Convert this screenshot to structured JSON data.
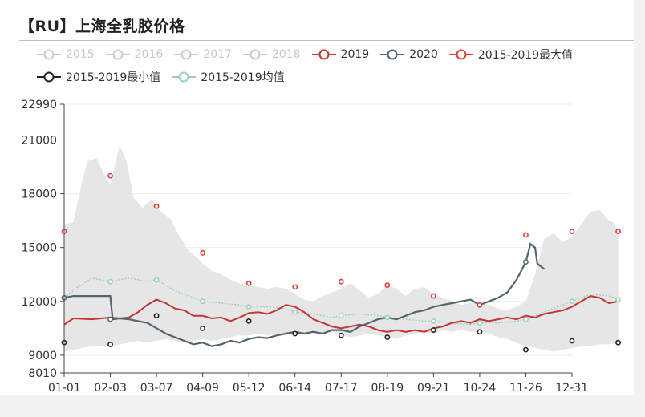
{
  "page": {
    "title": "【RU】上海全乳胶价格"
  },
  "colors": {
    "c2015": "#cccccc",
    "c2016": "#cccccc",
    "c2017": "#cccccc",
    "c2018": "#cccccc",
    "c2019": "#c23531",
    "c2020": "#546570",
    "cmax": "#d9413c",
    "cmin": "#222222",
    "cavg": "#9fd0b6",
    "band": "#e6e6e6",
    "grid": "#eeeeee",
    "axis": "#444444"
  },
  "chart_data": {
    "type": "line",
    "categories": [
      "01-01",
      "02-03",
      "03-07",
      "04-09",
      "05-12",
      "06-14",
      "07-17",
      "08-19",
      "09-21",
      "10-24",
      "11-26",
      "12-31"
    ],
    "y_ticks": [
      8010,
      9000,
      12000,
      15000,
      18000,
      21000,
      22990
    ],
    "ylim": [
      8010,
      22990
    ],
    "grid": true,
    "legend_position": "top",
    "legend": [
      {
        "name": "2015",
        "active": false
      },
      {
        "name": "2016",
        "active": false
      },
      {
        "name": "2017",
        "active": false
      },
      {
        "name": "2018",
        "active": false
      },
      {
        "name": "2019",
        "active": true
      },
      {
        "name": "2020",
        "active": true
      },
      {
        "name": "2015-2019最大值",
        "active": true
      },
      {
        "name": "2015-2019最小值",
        "active": true
      },
      {
        "name": "2015-2019均值",
        "active": true
      }
    ],
    "band": {
      "upper": [
        [
          0,
          16300
        ],
        [
          0.2,
          16400
        ],
        [
          0.4,
          18800
        ],
        [
          0.5,
          19800
        ],
        [
          0.7,
          20000
        ],
        [
          0.9,
          18900
        ],
        [
          1.0,
          18500
        ],
        [
          1.2,
          20700
        ],
        [
          1.35,
          19800
        ],
        [
          1.5,
          17800
        ],
        [
          1.7,
          17200
        ],
        [
          1.9,
          17700
        ],
        [
          2.1,
          17000
        ],
        [
          2.3,
          16600
        ],
        [
          2.5,
          15600
        ],
        [
          2.7,
          14800
        ],
        [
          2.9,
          14400
        ],
        [
          3.0,
          14100
        ],
        [
          3.2,
          13700
        ],
        [
          3.4,
          13500
        ],
        [
          3.6,
          13200
        ],
        [
          3.8,
          13000
        ],
        [
          4.0,
          12900
        ],
        [
          4.2,
          12800
        ],
        [
          4.4,
          12700
        ],
        [
          4.6,
          12800
        ],
        [
          4.8,
          12700
        ],
        [
          5.0,
          12400
        ],
        [
          5.2,
          12100
        ],
        [
          5.4,
          12000
        ],
        [
          5.6,
          12300
        ],
        [
          5.8,
          12500
        ],
        [
          6.0,
          12700
        ],
        [
          6.2,
          13000
        ],
        [
          6.4,
          12600
        ],
        [
          6.6,
          12200
        ],
        [
          6.8,
          12400
        ],
        [
          7.0,
          12900
        ],
        [
          7.2,
          12700
        ],
        [
          7.4,
          12300
        ],
        [
          7.6,
          12700
        ],
        [
          7.8,
          12800
        ],
        [
          8.0,
          12400
        ],
        [
          8.2,
          12200
        ],
        [
          8.4,
          12000
        ],
        [
          8.6,
          11800
        ],
        [
          8.8,
          11900
        ],
        [
          9.0,
          11900
        ],
        [
          9.2,
          11800
        ],
        [
          9.4,
          11600
        ],
        [
          9.6,
          11500
        ],
        [
          9.8,
          11700
        ],
        [
          10.0,
          12000
        ],
        [
          10.2,
          13500
        ],
        [
          10.4,
          15500
        ],
        [
          10.6,
          15800
        ],
        [
          10.8,
          15300
        ],
        [
          11.0,
          15600
        ],
        [
          11.2,
          16300
        ],
        [
          11.4,
          17000
        ],
        [
          11.6,
          17100
        ],
        [
          11.8,
          16500
        ],
        [
          11.9,
          16400
        ],
        [
          12.0,
          15900
        ]
      ],
      "lower": [
        [
          0,
          9200
        ],
        [
          0.2,
          9300
        ],
        [
          0.4,
          9400
        ],
        [
          0.6,
          9500
        ],
        [
          0.8,
          9500
        ],
        [
          1.0,
          9500
        ],
        [
          1.2,
          9600
        ],
        [
          1.4,
          9700
        ],
        [
          1.6,
          9800
        ],
        [
          1.8,
          9700
        ],
        [
          2.0,
          9800
        ],
        [
          2.2,
          9900
        ],
        [
          2.4,
          9800
        ],
        [
          2.6,
          9700
        ],
        [
          2.8,
          9800
        ],
        [
          3.0,
          9900
        ],
        [
          3.2,
          9800
        ],
        [
          3.4,
          9900
        ],
        [
          3.6,
          10000
        ],
        [
          3.8,
          10100
        ],
        [
          4.0,
          10100
        ],
        [
          4.2,
          10200
        ],
        [
          4.4,
          10100
        ],
        [
          4.6,
          10200
        ],
        [
          4.8,
          10200
        ],
        [
          5.0,
          10100
        ],
        [
          5.2,
          10200
        ],
        [
          5.4,
          10300
        ],
        [
          5.6,
          10200
        ],
        [
          5.8,
          10300
        ],
        [
          6.0,
          10100
        ],
        [
          6.2,
          10000
        ],
        [
          6.4,
          10100
        ],
        [
          6.6,
          10200
        ],
        [
          6.8,
          10100
        ],
        [
          7.0,
          10000
        ],
        [
          7.2,
          9900
        ],
        [
          7.4,
          10100
        ],
        [
          7.6,
          10200
        ],
        [
          7.8,
          10300
        ],
        [
          8.0,
          10200
        ],
        [
          8.2,
          10400
        ],
        [
          8.4,
          10300
        ],
        [
          8.6,
          10400
        ],
        [
          8.8,
          10300
        ],
        [
          9.0,
          10300
        ],
        [
          9.2,
          10200
        ],
        [
          9.4,
          10000
        ],
        [
          9.6,
          9900
        ],
        [
          9.8,
          9700
        ],
        [
          10.0,
          9500
        ],
        [
          10.2,
          9400
        ],
        [
          10.4,
          9300
        ],
        [
          10.6,
          9200
        ],
        [
          10.8,
          9300
        ],
        [
          11.0,
          9400
        ],
        [
          11.2,
          9500
        ],
        [
          11.4,
          9500
        ],
        [
          11.6,
          9600
        ],
        [
          11.8,
          9600
        ],
        [
          12.0,
          9700
        ]
      ]
    },
    "series": [
      {
        "name": "2019",
        "values": [
          [
            0,
            10700
          ],
          [
            0.2,
            11050
          ],
          [
            0.6,
            11000
          ],
          [
            1.0,
            11100
          ],
          [
            1.2,
            11050
          ],
          [
            1.4,
            11100
          ],
          [
            1.6,
            11400
          ],
          [
            1.8,
            11800
          ],
          [
            2.0,
            12100
          ],
          [
            2.2,
            11900
          ],
          [
            2.4,
            11600
          ],
          [
            2.6,
            11500
          ],
          [
            2.8,
            11200
          ],
          [
            3.0,
            11200
          ],
          [
            3.2,
            11050
          ],
          [
            3.4,
            11100
          ],
          [
            3.6,
            10900
          ],
          [
            3.8,
            11100
          ],
          [
            4.0,
            11350
          ],
          [
            4.2,
            11400
          ],
          [
            4.4,
            11300
          ],
          [
            4.6,
            11500
          ],
          [
            4.8,
            11800
          ],
          [
            5.0,
            11700
          ],
          [
            5.2,
            11400
          ],
          [
            5.4,
            11000
          ],
          [
            5.6,
            10800
          ],
          [
            5.8,
            10600
          ],
          [
            6.0,
            10500
          ],
          [
            6.2,
            10600
          ],
          [
            6.4,
            10700
          ],
          [
            6.6,
            10600
          ],
          [
            6.8,
            10400
          ],
          [
            7.0,
            10300
          ],
          [
            7.2,
            10400
          ],
          [
            7.4,
            10300
          ],
          [
            7.6,
            10400
          ],
          [
            7.8,
            10300
          ],
          [
            8.0,
            10500
          ],
          [
            8.2,
            10600
          ],
          [
            8.4,
            10800
          ],
          [
            8.6,
            10900
          ],
          [
            8.8,
            10800
          ],
          [
            9.0,
            11000
          ],
          [
            9.2,
            10900
          ],
          [
            9.4,
            11000
          ],
          [
            9.6,
            11100
          ],
          [
            9.8,
            11000
          ],
          [
            10.0,
            11200
          ],
          [
            10.2,
            11100
          ],
          [
            10.4,
            11300
          ],
          [
            10.6,
            11400
          ],
          [
            10.8,
            11500
          ],
          [
            11.0,
            11700
          ],
          [
            11.2,
            12000
          ],
          [
            11.4,
            12300
          ],
          [
            11.6,
            12200
          ],
          [
            11.8,
            11900
          ],
          [
            12.0,
            12000
          ]
        ]
      },
      {
        "name": "2020",
        "values": [
          [
            0,
            12200
          ],
          [
            0.2,
            12300
          ],
          [
            0.4,
            12300
          ],
          [
            0.6,
            12300
          ],
          [
            0.8,
            12300
          ],
          [
            1.0,
            12300
          ],
          [
            1.05,
            11000
          ],
          [
            1.2,
            11050
          ],
          [
            1.4,
            11000
          ],
          [
            1.6,
            10900
          ],
          [
            1.8,
            10800
          ],
          [
            2.0,
            10500
          ],
          [
            2.2,
            10200
          ],
          [
            2.4,
            10000
          ],
          [
            2.6,
            9800
          ],
          [
            2.8,
            9600
          ],
          [
            3.0,
            9700
          ],
          [
            3.2,
            9500
          ],
          [
            3.4,
            9600
          ],
          [
            3.6,
            9800
          ],
          [
            3.8,
            9700
          ],
          [
            4.0,
            9900
          ],
          [
            4.2,
            10000
          ],
          [
            4.4,
            9950
          ],
          [
            4.6,
            10100
          ],
          [
            4.8,
            10200
          ],
          [
            5.0,
            10300
          ],
          [
            5.2,
            10200
          ],
          [
            5.4,
            10300
          ],
          [
            5.6,
            10200
          ],
          [
            5.8,
            10400
          ],
          [
            6.0,
            10400
          ],
          [
            6.2,
            10300
          ],
          [
            6.4,
            10600
          ],
          [
            6.6,
            10800
          ],
          [
            6.8,
            11000
          ],
          [
            7.0,
            11100
          ],
          [
            7.2,
            11000
          ],
          [
            7.4,
            11200
          ],
          [
            7.6,
            11400
          ],
          [
            7.8,
            11500
          ],
          [
            8.0,
            11700
          ],
          [
            8.2,
            11800
          ],
          [
            8.4,
            11900
          ],
          [
            8.6,
            12000
          ],
          [
            8.8,
            12100
          ],
          [
            9.0,
            11800
          ],
          [
            9.2,
            12000
          ],
          [
            9.4,
            12200
          ],
          [
            9.6,
            12500
          ],
          [
            9.8,
            13200
          ],
          [
            10.0,
            14200
          ],
          [
            10.1,
            15200
          ],
          [
            10.2,
            15000
          ],
          [
            10.25,
            14100
          ],
          [
            10.4,
            13800
          ]
        ]
      },
      {
        "name": "2015-2019最大值",
        "points": [
          [
            0,
            15900
          ],
          [
            1.0,
            19000
          ],
          [
            2.0,
            17300
          ],
          [
            3.0,
            14700
          ],
          [
            4.0,
            13000
          ],
          [
            5.0,
            12800
          ],
          [
            6.0,
            13100
          ],
          [
            7.0,
            12900
          ],
          [
            8.0,
            12300
          ],
          [
            9.0,
            11800
          ],
          [
            10.0,
            15700
          ],
          [
            11.0,
            15900
          ],
          [
            12.0,
            15900
          ]
        ]
      },
      {
        "name": "2015-2019最小值",
        "points": [
          [
            0,
            9700
          ],
          [
            1.0,
            9600
          ],
          [
            2.0,
            11200
          ],
          [
            3.0,
            10500
          ],
          [
            4.0,
            10900
          ],
          [
            5.0,
            10200
          ],
          [
            6.0,
            10100
          ],
          [
            7.0,
            10000
          ],
          [
            8.0,
            10400
          ],
          [
            9.0,
            10300
          ],
          [
            10.0,
            9300
          ],
          [
            11.0,
            9800
          ],
          [
            12.0,
            9700
          ]
        ]
      },
      {
        "name": "2015-2019均值",
        "values": [
          [
            0,
            12200
          ],
          [
            0.3,
            12800
          ],
          [
            0.6,
            13300
          ],
          [
            1.0,
            13100
          ],
          [
            1.4,
            13300
          ],
          [
            1.8,
            13100
          ],
          [
            2.0,
            13200
          ],
          [
            2.4,
            12600
          ],
          [
            2.8,
            12200
          ],
          [
            3.0,
            12000
          ],
          [
            3.4,
            11900
          ],
          [
            3.8,
            11800
          ],
          [
            4.0,
            11700
          ],
          [
            4.4,
            11700
          ],
          [
            4.8,
            11600
          ],
          [
            5.0,
            11400
          ],
          [
            5.4,
            11300
          ],
          [
            5.8,
            11100
          ],
          [
            6.0,
            11200
          ],
          [
            6.4,
            11300
          ],
          [
            6.8,
            11200
          ],
          [
            7.0,
            11100
          ],
          [
            7.4,
            11000
          ],
          [
            7.8,
            10900
          ],
          [
            8.0,
            10900
          ],
          [
            8.4,
            10800
          ],
          [
            8.8,
            10700
          ],
          [
            9.0,
            10800
          ],
          [
            9.4,
            10800
          ],
          [
            9.8,
            10900
          ],
          [
            10.0,
            11000
          ],
          [
            10.4,
            11400
          ],
          [
            10.8,
            11800
          ],
          [
            11.0,
            12000
          ],
          [
            11.4,
            12400
          ],
          [
            11.8,
            12300
          ],
          [
            12.0,
            12100
          ]
        ],
        "points": [
          [
            0,
            12200
          ],
          [
            1.0,
            13100
          ],
          [
            2.0,
            13200
          ],
          [
            3.0,
            12000
          ],
          [
            4.0,
            11700
          ],
          [
            5.0,
            11400
          ],
          [
            6.0,
            11200
          ],
          [
            7.0,
            11100
          ],
          [
            8.0,
            10900
          ],
          [
            9.0,
            10800
          ],
          [
            10.0,
            11000
          ],
          [
            11.0,
            12000
          ],
          [
            12.0,
            12100
          ]
        ]
      }
    ]
  }
}
